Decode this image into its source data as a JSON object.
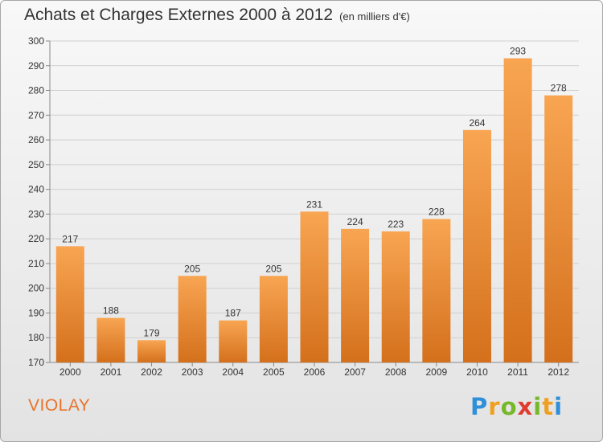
{
  "title": "Achats et Charges Externes 2000 à 2012",
  "unit": "(en milliers d'€)",
  "commune": "VIOLAY",
  "logo": "Proxiti",
  "colors": {
    "bar_light": "#f7a14e",
    "bar_dark": "#d8721d",
    "accent": "#e8732a"
  },
  "chart_data": {
    "type": "bar",
    "categories": [
      "2000",
      "2001",
      "2002",
      "2003",
      "2004",
      "2005",
      "2006",
      "2007",
      "2008",
      "2009",
      "2010",
      "2011",
      "2012"
    ],
    "values": [
      217,
      188,
      179,
      205,
      187,
      205,
      231,
      224,
      223,
      228,
      264,
      293,
      278
    ],
    "ylim": [
      170,
      300
    ],
    "yticks": [
      170,
      180,
      190,
      200,
      210,
      220,
      230,
      240,
      250,
      260,
      270,
      280,
      290,
      300
    ],
    "grid": true
  }
}
